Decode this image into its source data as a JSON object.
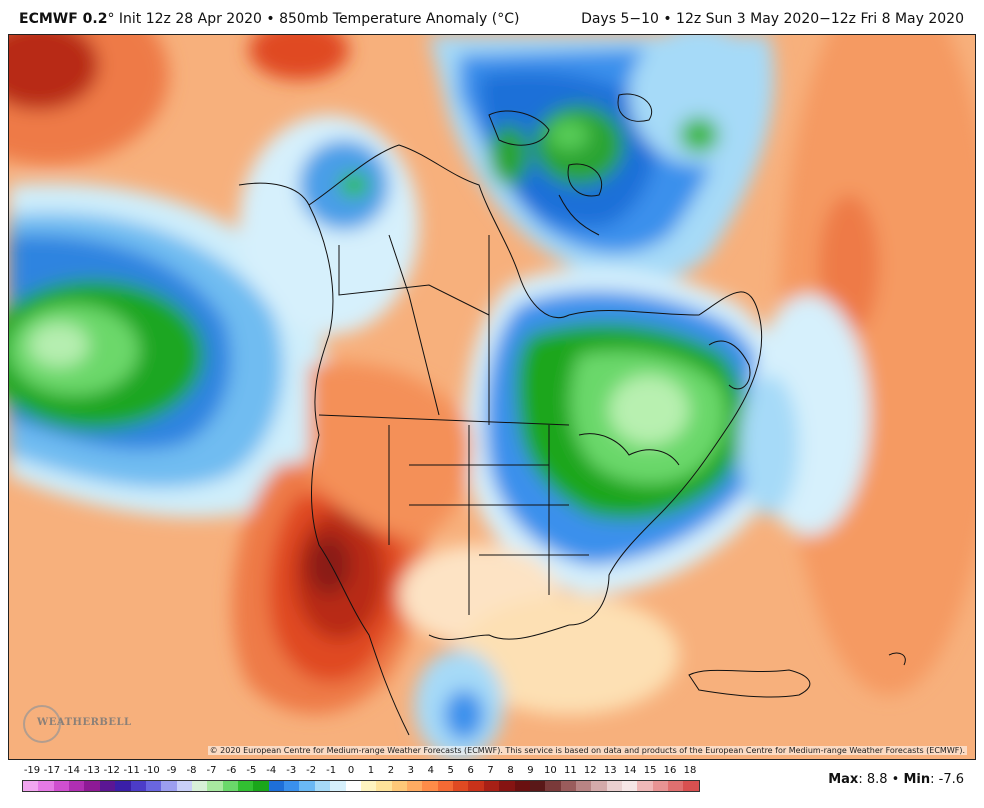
{
  "header": {
    "model": "ECMWF 0.2",
    "init": "° Init 12z 28 Apr 2020 • 850mb Temperature Anomaly (°C)",
    "valid": "Days 5−10 • 12z Sun 3 May 2020−12z Fri 8 May 2020"
  },
  "map": {
    "copyright": "© 2020 European Centre for Medium-range Weather Forecasts (ECMWF). This service is based on data and products of the European Centre for Medium-range Weather Forecasts (ECMWF).",
    "logo_text": "WEATHERBELL"
  },
  "legend": {
    "labels": [
      "-19",
      "-17",
      "-14",
      "-13",
      "-12",
      "-11",
      "-10",
      "-9",
      "-8",
      "-7",
      "-6",
      "-5",
      "-4",
      "-3",
      "-2",
      "-1",
      "0",
      "1",
      "2",
      "3",
      "4",
      "5",
      "6",
      "7",
      "8",
      "9",
      "10",
      "11",
      "12",
      "13",
      "14",
      "15",
      "16",
      "18"
    ],
    "colors": [
      "#f2a6f0",
      "#e67ae6",
      "#d04fd0",
      "#b02fb3",
      "#8e1a96",
      "#5b1694",
      "#3a1fa8",
      "#4c3cc8",
      "#6a66e0",
      "#9c9ef0",
      "#c8cff8",
      "#d8f0d8",
      "#a8e8a0",
      "#6ad86a",
      "#32c032",
      "#1aa61a",
      "#1e6fd8",
      "#3a90ec",
      "#6ab8f4",
      "#a6daf8",
      "#d6f0fc",
      "#ffffff",
      "#fff4c0",
      "#ffe39a",
      "#ffc878",
      "#ffab62",
      "#ff8c48",
      "#f46a34",
      "#e04a22",
      "#c8321a",
      "#a82016",
      "#861412",
      "#6a1010",
      "#5a1818",
      "#7a3a3a",
      "#9a5c5c",
      "#b88484",
      "#d4aaaa",
      "#ead0d0",
      "#f6e6e6",
      "#f0b8b8",
      "#e89494",
      "#e07070",
      "#d85050"
    ]
  },
  "stats": {
    "max_label": "Max",
    "max_value": ": 8.8 • ",
    "min_label": "Min",
    "min_value": ": -7.6"
  }
}
